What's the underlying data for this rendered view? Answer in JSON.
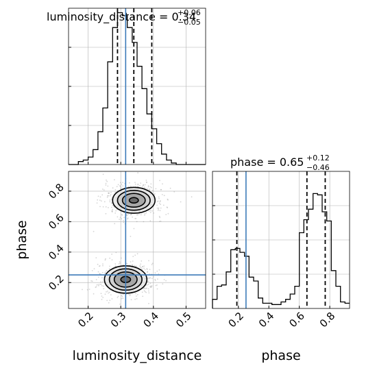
{
  "chart_data": [
    {
      "panel": "luminosity_distance marginal",
      "type": "histogram",
      "title_main": "luminosity_distance = 0.34",
      "title_sup": "+0.06",
      "title_sub": "−0.05",
      "xlim": [
        0.14,
        0.56
      ],
      "ylim": [
        0,
        1
      ],
      "bins": [
        0.14,
        0.155,
        0.17,
        0.185,
        0.2,
        0.215,
        0.23,
        0.245,
        0.26,
        0.275,
        0.29,
        0.305,
        0.32,
        0.335,
        0.35,
        0.365,
        0.38,
        0.395,
        0.41,
        0.425,
        0.44,
        0.455,
        0.47,
        0.485,
        0.5,
        0.515,
        0.53,
        0.545,
        0.56
      ],
      "counts": [
        0,
        0,
        0.02,
        0.03,
        0.05,
        0.1,
        0.22,
        0.38,
        0.69,
        0.92,
        1.02,
        1.0,
        0.92,
        0.82,
        0.66,
        0.51,
        0.34,
        0.24,
        0.14,
        0.07,
        0.03,
        0.01,
        0,
        0,
        0,
        0,
        0,
        0
      ],
      "quantile_lines": [
        0.29,
        0.34,
        0.395
      ],
      "truth": 0.315,
      "xticks": [
        0.2,
        0.3,
        0.4,
        0.5
      ]
    },
    {
      "panel": "phase marginal",
      "type": "histogram",
      "title_main": "phase = 0.65",
      "title_sup": "+0.12",
      "title_sub": "−0.46",
      "xlim": [
        0.03,
        0.93
      ],
      "ylim": [
        0,
        1
      ],
      "bins": [
        0.03,
        0.06,
        0.09,
        0.12,
        0.15,
        0.18,
        0.21,
        0.24,
        0.27,
        0.3,
        0.33,
        0.36,
        0.39,
        0.42,
        0.45,
        0.48,
        0.51,
        0.54,
        0.57,
        0.6,
        0.63,
        0.66,
        0.69,
        0.72,
        0.75,
        0.78,
        0.81,
        0.84,
        0.87,
        0.9,
        0.93
      ],
      "counts": [
        0.07,
        0.17,
        0.18,
        0.28,
        0.45,
        0.46,
        0.43,
        0.4,
        0.24,
        0.21,
        0.08,
        0.04,
        0.04,
        0.03,
        0.03,
        0.05,
        0.07,
        0.11,
        0.17,
        0.58,
        0.68,
        0.76,
        0.88,
        0.87,
        0.74,
        0.67,
        0.29,
        0.17,
        0.05,
        0.04
      ],
      "quantile_lines": [
        0.19,
        0.65,
        0.77
      ],
      "truth": 0.25,
      "xticks": [
        0.2,
        0.4,
        0.6,
        0.8
      ]
    },
    {
      "panel": "2D corner",
      "type": "scatter",
      "xlabel": "luminosity_distance",
      "ylabel": "phase",
      "xlim": [
        0.14,
        0.56
      ],
      "ylim": [
        0.03,
        0.93
      ],
      "xticks": [
        0.2,
        0.3,
        0.4,
        0.5
      ],
      "yticks": [
        0.2,
        0.4,
        0.6,
        0.8
      ],
      "truth_x": 0.315,
      "truth_y": 0.25,
      "modes": [
        {
          "x": 0.34,
          "y": 0.74,
          "sx": 0.035,
          "sy": 0.045,
          "n": 600
        },
        {
          "x": 0.315,
          "y": 0.22,
          "sx": 0.035,
          "sy": 0.045,
          "n": 500
        }
      ],
      "contour_levels": [
        {
          "mode": 0,
          "rx": 0.014,
          "ry": 0.018
        },
        {
          "mode": 0,
          "rx": 0.035,
          "ry": 0.045
        },
        {
          "mode": 0,
          "rx": 0.05,
          "ry": 0.065
        },
        {
          "mode": 0,
          "rx": 0.065,
          "ry": 0.085
        },
        {
          "mode": 1,
          "rx": 0.015,
          "ry": 0.02
        },
        {
          "mode": 1,
          "rx": 0.035,
          "ry": 0.05
        },
        {
          "mode": 1,
          "rx": 0.05,
          "ry": 0.07
        },
        {
          "mode": 1,
          "rx": 0.065,
          "ry": 0.09
        }
      ]
    }
  ],
  "colors": {
    "truth_line": "#3b7ab8",
    "hist_line": "#000000",
    "grid": "#b0b0b0",
    "scatter": "#888888"
  }
}
